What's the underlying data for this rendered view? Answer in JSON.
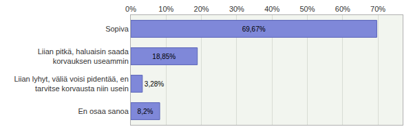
{
  "chart_data": {
    "type": "bar",
    "orientation": "horizontal",
    "categories": [
      "Sopiva",
      "Liian pitkä, haluaisin saada korvauksen useammin",
      "Liian lyhyt, väliä voisi pidentää, en tarvitse korvausta niin usein",
      "En osaa sanoa"
    ],
    "values": [
      69.67,
      18.85,
      3.28,
      8.2
    ],
    "value_labels": [
      "69,67%",
      "18,85%",
      "3,28%",
      "8,2%"
    ],
    "data_labels": true,
    "color": "#7f88d9",
    "xlim": [
      0,
      77
    ],
    "xticks": [
      {
        "value": 0,
        "label": "0%"
      },
      {
        "value": 10,
        "label": "10%"
      },
      {
        "value": 20,
        "label": "20%"
      },
      {
        "value": 30,
        "label": "30%"
      },
      {
        "value": 40,
        "label": "40%"
      },
      {
        "value": 50,
        "label": "50%"
      },
      {
        "value": 60,
        "label": "60%"
      },
      {
        "value": 70,
        "label": "70%"
      }
    ],
    "grid": true
  }
}
